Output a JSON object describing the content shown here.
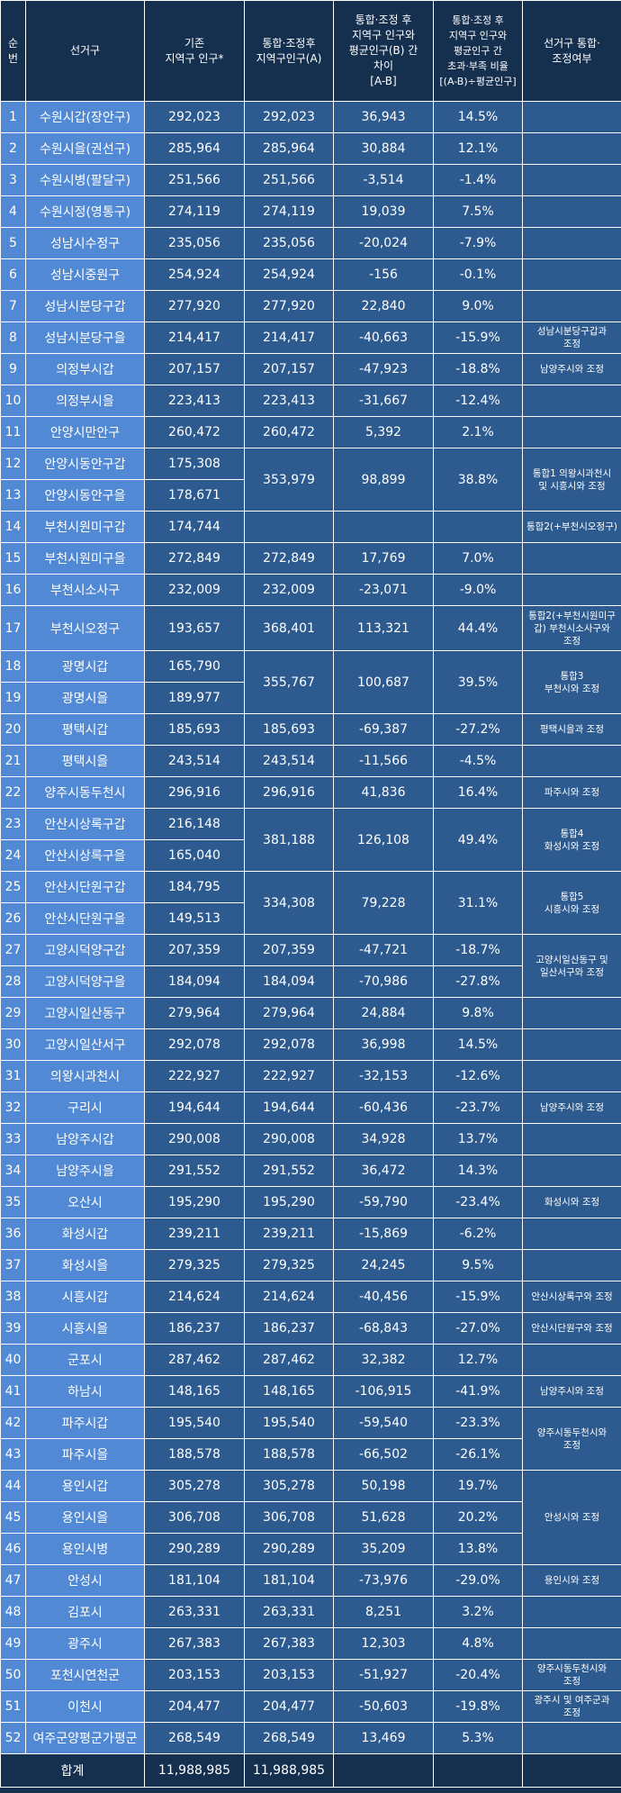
{
  "header": {
    "no": "순\n번",
    "district": "선거구",
    "prev_pop": "기존\n지역구 인구*",
    "post_pop": "통합·조정후\n지역구인구(A)",
    "diff": "통합·조정 후\n지역구 인구와\n평균인구(B) 간\n차이\n[A-B]",
    "ratio": "통합·조정 후\n지역구 인구와\n평균인구 간\n초과·부족 비율\n[(A-B)÷평균인구]",
    "note": "선거구 통합·\n조정여부"
  },
  "rows": [
    {
      "no": "1",
      "district": "수원시갑(장안구)",
      "prev": "292,023",
      "post": "292,023",
      "diff": "36,943",
      "ratio": "14.5%",
      "note": ""
    },
    {
      "no": "2",
      "district": "수원시을(권선구)",
      "prev": "285,964",
      "post": "285,964",
      "diff": "30,884",
      "ratio": "12.1%",
      "note": ""
    },
    {
      "no": "3",
      "district": "수원시병(팔달구)",
      "prev": "251,566",
      "post": "251,566",
      "diff": "-3,514",
      "ratio": "-1.4%",
      "note": ""
    },
    {
      "no": "4",
      "district": "수원시정(영통구)",
      "prev": "274,119",
      "post": "274,119",
      "diff": "19,039",
      "ratio": "7.5%",
      "note": ""
    },
    {
      "no": "5",
      "district": "성남시수정구",
      "prev": "235,056",
      "post": "235,056",
      "diff": "-20,024",
      "ratio": "-7.9%",
      "note": ""
    },
    {
      "no": "6",
      "district": "성남시중원구",
      "prev": "254,924",
      "post": "254,924",
      "diff": "-156",
      "ratio": "-0.1%",
      "note": ""
    },
    {
      "no": "7",
      "district": "성남시분당구갑",
      "prev": "277,920",
      "post": "277,920",
      "diff": "22,840",
      "ratio": "9.0%",
      "note": ""
    },
    {
      "no": "8",
      "district": "성남시분당구을",
      "prev": "214,417",
      "post": "214,417",
      "diff": "-40,663",
      "ratio": "-15.9%",
      "note": "성남시분당구갑과\n조정"
    },
    {
      "no": "9",
      "district": "의정부시갑",
      "prev": "207,157",
      "post": "207,157",
      "diff": "-47,923",
      "ratio": "-18.8%",
      "note": "남양주시와 조정"
    },
    {
      "no": "10",
      "district": "의정부시을",
      "prev": "223,413",
      "post": "223,413",
      "diff": "-31,667",
      "ratio": "-12.4%",
      "note": ""
    },
    {
      "no": "11",
      "district": "안양시만안구",
      "prev": "260,472",
      "post": "260,472",
      "diff": "5,392",
      "ratio": "2.1%",
      "note": ""
    },
    {
      "no": "12",
      "district": "안양시동안구갑",
      "prev": "175,308",
      "post": "353,979",
      "diff": "98,899",
      "ratio": "38.8%",
      "note": "통합1 의왕시과천시\n및 시흥시와 조정"
    },
    {
      "no": "13",
      "district": "안양시동안구을",
      "prev": "178,671",
      "post": "",
      "diff": "",
      "ratio": "",
      "note": ""
    },
    {
      "no": "14",
      "district": "부천시원미구갑",
      "prev": "174,744",
      "post": "",
      "diff": "",
      "ratio": "",
      "note": "통합2(+부천시오정구)"
    },
    {
      "no": "15",
      "district": "부천시원미구을",
      "prev": "272,849",
      "post": "272,849",
      "diff": "17,769",
      "ratio": "7.0%",
      "note": ""
    },
    {
      "no": "16",
      "district": "부천시소사구",
      "prev": "232,009",
      "post": "232,009",
      "diff": "-23,071",
      "ratio": "-9.0%",
      "note": ""
    },
    {
      "no": "17",
      "district": "부천시오정구",
      "prev": "193,657",
      "post": "368,401",
      "diff": "113,321",
      "ratio": "44.4%",
      "note": "통합2(+부천시원미구\n갑) 부천시소사구와\n조정"
    },
    {
      "no": "18",
      "district": "광명시갑",
      "prev": "165,790",
      "post": "355,767",
      "diff": "100,687",
      "ratio": "39.5%",
      "note": "통합3\n부천시와 조정"
    },
    {
      "no": "19",
      "district": "광명시을",
      "prev": "189,977",
      "post": "",
      "diff": "",
      "ratio": "",
      "note": ""
    },
    {
      "no": "20",
      "district": "평택시갑",
      "prev": "185,693",
      "post": "185,693",
      "diff": "-69,387",
      "ratio": "-27.2%",
      "note": "평택시을과 조정"
    },
    {
      "no": "21",
      "district": "평택시을",
      "prev": "243,514",
      "post": "243,514",
      "diff": "-11,566",
      "ratio": "-4.5%",
      "note": ""
    },
    {
      "no": "22",
      "district": "양주시동두천시",
      "prev": "296,916",
      "post": "296,916",
      "diff": "41,836",
      "ratio": "16.4%",
      "note": "파주시와 조정"
    },
    {
      "no": "23",
      "district": "안산시상록구갑",
      "prev": "216,148",
      "post": "381,188",
      "diff": "126,108",
      "ratio": "49.4%",
      "note": "통합4\n화성시와 조정"
    },
    {
      "no": "24",
      "district": "안산시상록구을",
      "prev": "165,040",
      "post": "",
      "diff": "",
      "ratio": "",
      "note": ""
    },
    {
      "no": "25",
      "district": "안산시단원구갑",
      "prev": "184,795",
      "post": "334,308",
      "diff": "79,228",
      "ratio": "31.1%",
      "note": "통합5\n시흥시와 조정"
    },
    {
      "no": "26",
      "district": "안산시단원구을",
      "prev": "149,513",
      "post": "",
      "diff": "",
      "ratio": "",
      "note": ""
    },
    {
      "no": "27",
      "district": "고양시덕양구갑",
      "prev": "207,359",
      "post": "207,359",
      "diff": "-47,721",
      "ratio": "-18.7%",
      "note": "고양시일산동구 및\n일산서구와 조정"
    },
    {
      "no": "28",
      "district": "고양시덕양구을",
      "prev": "184,094",
      "post": "184,094",
      "diff": "-70,986",
      "ratio": "-27.8%",
      "note": ""
    },
    {
      "no": "29",
      "district": "고양시일산동구",
      "prev": "279,964",
      "post": "279,964",
      "diff": "24,884",
      "ratio": "9.8%",
      "note": ""
    },
    {
      "no": "30",
      "district": "고양시일산서구",
      "prev": "292,078",
      "post": "292,078",
      "diff": "36,998",
      "ratio": "14.5%",
      "note": ""
    },
    {
      "no": "31",
      "district": "의왕시과천시",
      "prev": "222,927",
      "post": "222,927",
      "diff": "-32,153",
      "ratio": "-12.6%",
      "note": ""
    },
    {
      "no": "32",
      "district": "구리시",
      "prev": "194,644",
      "post": "194,644",
      "diff": "-60,436",
      "ratio": "-23.7%",
      "note": "남양주시와 조정"
    },
    {
      "no": "33",
      "district": "남양주시갑",
      "prev": "290,008",
      "post": "290,008",
      "diff": "34,928",
      "ratio": "13.7%",
      "note": ""
    },
    {
      "no": "34",
      "district": "남양주시을",
      "prev": "291,552",
      "post": "291,552",
      "diff": "36,472",
      "ratio": "14.3%",
      "note": ""
    },
    {
      "no": "35",
      "district": "오산시",
      "prev": "195,290",
      "post": "195,290",
      "diff": "-59,790",
      "ratio": "-23.4%",
      "note": "화성시와 조정"
    },
    {
      "no": "36",
      "district": "화성시갑",
      "prev": "239,211",
      "post": "239,211",
      "diff": "-15,869",
      "ratio": "-6.2%",
      "note": ""
    },
    {
      "no": "37",
      "district": "화성시을",
      "prev": "279,325",
      "post": "279,325",
      "diff": "24,245",
      "ratio": "9.5%",
      "note": ""
    },
    {
      "no": "38",
      "district": "시흥시갑",
      "prev": "214,624",
      "post": "214,624",
      "diff": "-40,456",
      "ratio": "-15.9%",
      "note": "안산시상록구와 조정"
    },
    {
      "no": "39",
      "district": "시흥시을",
      "prev": "186,237",
      "post": "186,237",
      "diff": "-68,843",
      "ratio": "-27.0%",
      "note": "안산시단원구와 조정"
    },
    {
      "no": "40",
      "district": "군포시",
      "prev": "287,462",
      "post": "287,462",
      "diff": "32,382",
      "ratio": "12.7%",
      "note": ""
    },
    {
      "no": "41",
      "district": "하남시",
      "prev": "148,165",
      "post": "148,165",
      "diff": "-106,915",
      "ratio": "-41.9%",
      "note": "남양주시와 조정"
    },
    {
      "no": "42",
      "district": "파주시갑",
      "prev": "195,540",
      "post": "195,540",
      "diff": "-59,540",
      "ratio": "-23.3%",
      "note": "양주시동두천시와\n조정"
    },
    {
      "no": "43",
      "district": "파주시을",
      "prev": "188,578",
      "post": "188,578",
      "diff": "-66,502",
      "ratio": "-26.1%",
      "note": ""
    },
    {
      "no": "44",
      "district": "용인시갑",
      "prev": "305,278",
      "post": "305,278",
      "diff": "50,198",
      "ratio": "19.7%",
      "note": "안성시와 조정"
    },
    {
      "no": "45",
      "district": "용인시을",
      "prev": "306,708",
      "post": "306,708",
      "diff": "51,628",
      "ratio": "20.2%",
      "note": ""
    },
    {
      "no": "46",
      "district": "용인시병",
      "prev": "290,289",
      "post": "290,289",
      "diff": "35,209",
      "ratio": "13.8%",
      "note": ""
    },
    {
      "no": "47",
      "district": "안성시",
      "prev": "181,104",
      "post": "181,104",
      "diff": "-73,976",
      "ratio": "-29.0%",
      "note": "용인시와 조정"
    },
    {
      "no": "48",
      "district": "김포시",
      "prev": "263,331",
      "post": "263,331",
      "diff": "8,251",
      "ratio": "3.2%",
      "note": ""
    },
    {
      "no": "49",
      "district": "광주시",
      "prev": "267,383",
      "post": "267,383",
      "diff": "12,303",
      "ratio": "4.8%",
      "note": ""
    },
    {
      "no": "50",
      "district": "포천시연천군",
      "prev": "203,153",
      "post": "203,153",
      "diff": "-51,927",
      "ratio": "-20.4%",
      "note": "양주시동두천시와\n조정"
    },
    {
      "no": "51",
      "district": "이천시",
      "prev": "204,477",
      "post": "204,477",
      "diff": "-50,603",
      "ratio": "-19.8%",
      "note": "광주시 및 여주군과\n조정"
    },
    {
      "no": "52",
      "district": "여주군양평군가평군",
      "prev": "268,549",
      "post": "268,549",
      "diff": "13,469",
      "ratio": "5.3%",
      "note": ""
    }
  ],
  "footer": {
    "label": "합계",
    "prev": "11,988,985",
    "post": "11,988,985"
  },
  "colors": {
    "header_bg": "#15304f",
    "highlight_cell": "#5189d5",
    "body_cell": "#2d5a8f",
    "border": "#ffffff"
  }
}
